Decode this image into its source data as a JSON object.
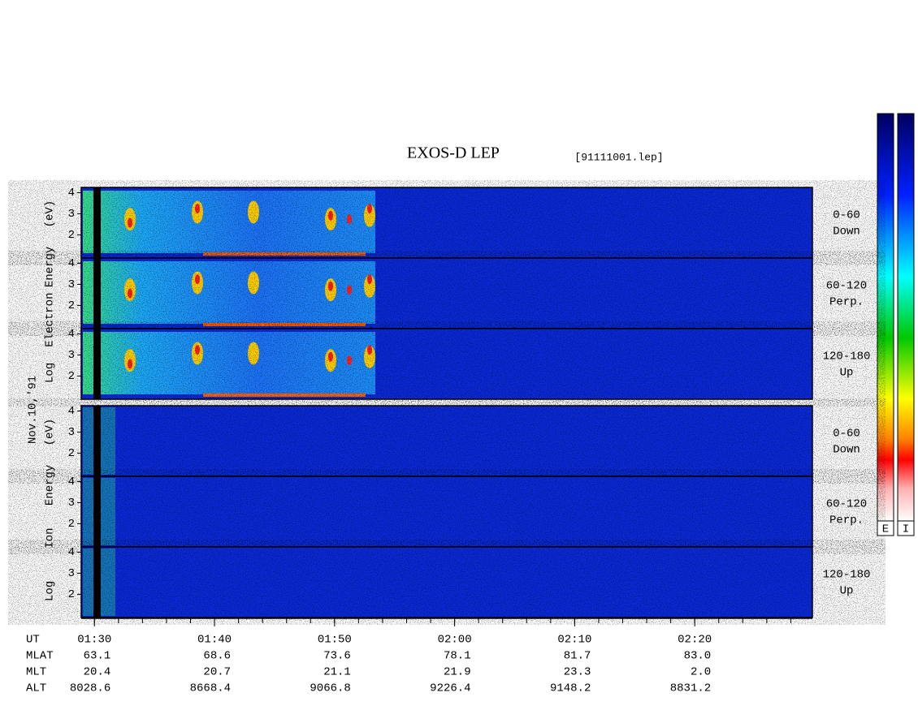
{
  "title": "EXOS-D LEP",
  "file": "[91111001.lep]",
  "date_label": "Nov.10,'91",
  "groups": [
    {
      "ylabel": [
        "Log",
        "Electron",
        "Energy",
        "(eV)"
      ],
      "panels": [
        {
          "label": [
            "0-60",
            "Down"
          ]
        },
        {
          "label": [
            "60-120",
            "Perp."
          ]
        },
        {
          "label": [
            "120-180",
            "Up"
          ]
        }
      ]
    },
    {
      "ylabel": [
        "Log",
        "Ion",
        "Energy",
        "(eV)"
      ],
      "panels": [
        {
          "label": [
            "0-60",
            "Down"
          ]
        },
        {
          "label": [
            "60-120",
            "Perp."
          ]
        },
        {
          "label": [
            "120-180",
            "Up"
          ]
        }
      ]
    }
  ],
  "ylim": [
    0.9,
    4.25
  ],
  "yticks": [
    2,
    3,
    4
  ],
  "time_axis": {
    "xlim": [
      -1.1,
      59.8
    ],
    "xticks": [
      {
        "value": 0,
        "label": "01:30"
      },
      {
        "value": 10,
        "label": "01:40"
      },
      {
        "value": 20,
        "label": "01:50"
      },
      {
        "value": 30,
        "label": "02:00"
      },
      {
        "value": 40,
        "label": "02:10"
      },
      {
        "value": 50,
        "label": "02:20"
      }
    ],
    "minor_step": 2,
    "row_name": "UT",
    "rows": [
      {
        "name": "MLAT",
        "values": [
          "63.1",
          "68.6",
          "73.6",
          "78.1",
          "81.7",
          "83.0"
        ]
      },
      {
        "name": "MLT",
        "values": [
          "20.4",
          "20.7",
          "21.1",
          "21.9",
          "23.3",
          "2.0"
        ]
      },
      {
        "name": "ALT",
        "values": [
          "8028.6",
          "8668.4",
          "9066.8",
          "9226.4",
          "9148.2",
          "8831.2"
        ]
      }
    ]
  },
  "colorbar": {
    "labels": [
      "E",
      "I"
    ]
  }
}
